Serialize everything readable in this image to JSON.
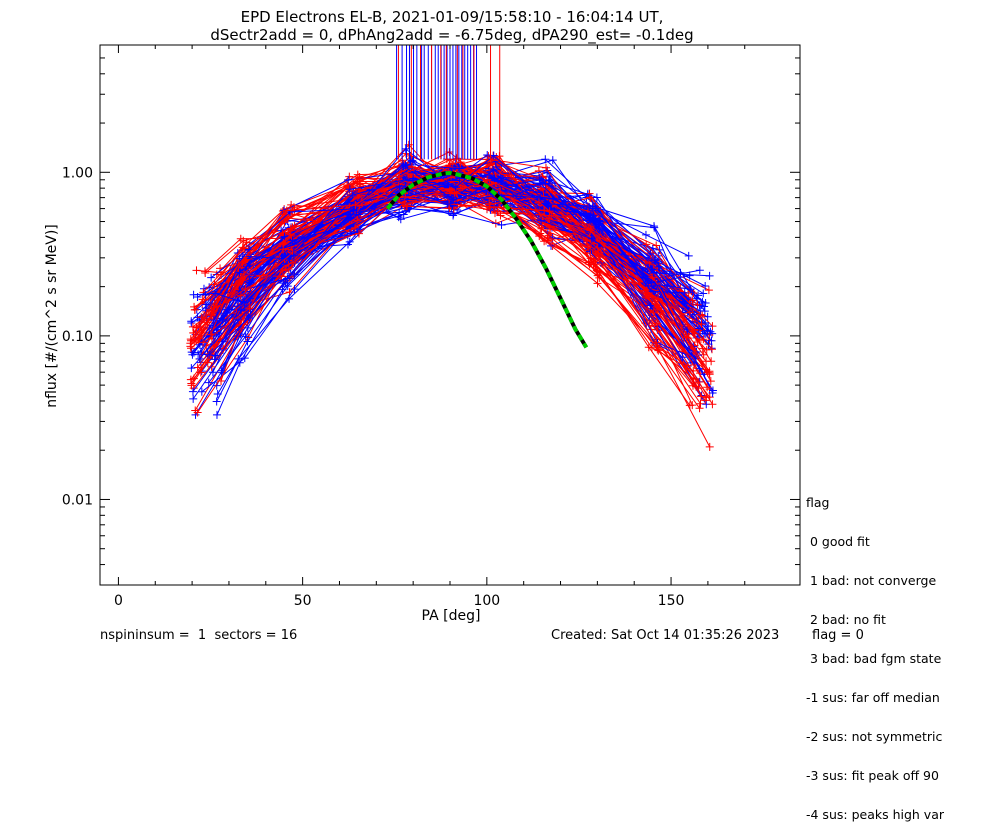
{
  "chart_data": {
    "type": "line",
    "title": "EPD Electrons EL-B, 2021-01-09/15:58:10 - 16:04:14 UT,",
    "subtitle": "dSectr2add = 0, dPhAng2add = -6.75deg, dPA290_est=  -0.1deg",
    "xlabel": "PA [deg]",
    "ylabel": "nflux [#/(cm^2 s sr MeV)]",
    "xlim": [
      -5,
      185
    ],
    "ylim": [
      0.003,
      6
    ],
    "y_scale": "log",
    "x_ticks": [
      0,
      50,
      100,
      150
    ],
    "x_tick_labels": [
      "0",
      "50",
      "100",
      "150"
    ],
    "y_ticks": [
      0.01,
      0.1,
      1.0
    ],
    "y_tick_labels": [
      "0.01",
      "0.10",
      "1.00"
    ],
    "grid": false,
    "series_colors": {
      "red": "#ff0000",
      "blue": "#0000ff",
      "fit": "#00cc00",
      "fit_outline": "#000000"
    },
    "red_markers_pa": [
      76,
      79.5,
      82,
      85,
      87.5,
      89,
      92,
      93.5,
      96.5,
      101,
      103.5
    ],
    "blue_markers_pa": [
      75.5,
      77,
      78.2,
      79,
      80.1,
      81,
      82.3,
      83,
      84.1,
      85,
      86,
      86.8,
      87.6,
      88.4,
      89.2,
      90,
      90.8,
      91.6,
      92.4,
      93.2,
      94,
      94.8,
      95.6,
      96.4,
      97.2
    ],
    "fit_curve": {
      "x": [
        73,
        76,
        80,
        84,
        88,
        90,
        92,
        96,
        100,
        104,
        108,
        112,
        116,
        120,
        124,
        127
      ],
      "y": [
        0.6,
        0.72,
        0.84,
        0.93,
        0.98,
        0.99,
        0.97,
        0.92,
        0.82,
        0.68,
        0.52,
        0.38,
        0.26,
        0.17,
        0.11,
        0.085
      ]
    }
  },
  "legend": {
    "title": "flag",
    "items": [
      " 0 good fit",
      " 1 bad: not converge",
      " 2 bad: no fit",
      " 3 bad: bad fgm state",
      "-1 sus: far off median",
      "-2 sus: not symmetric",
      "-3 sus: fit peak off 90",
      "-4 sus: peaks high var"
    ]
  },
  "footer": {
    "left": "nspininsum =  1  sectors = 16",
    "created": "Created: Sat Oct 14 01:35:26 2023",
    "flag": "flag = 0"
  }
}
